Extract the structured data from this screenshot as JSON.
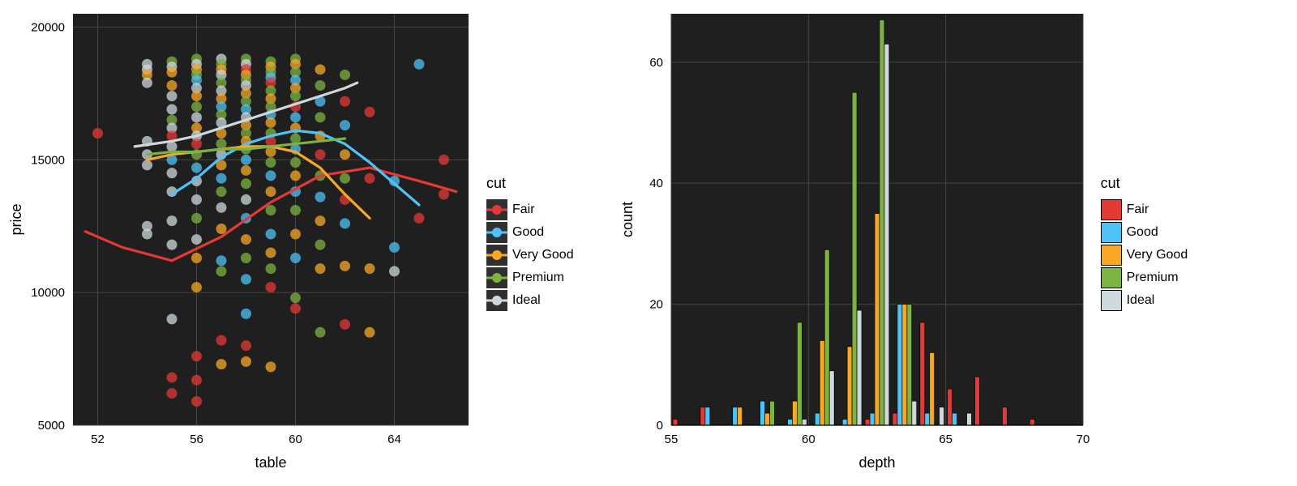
{
  "palette": {
    "Fair": "#e53935",
    "Good": "#4fc3f7",
    "Very Good": "#f9a825",
    "Premium": "#7cb342",
    "Ideal": "#cfd8dc"
  },
  "cut_order": [
    "Fair",
    "Good",
    "Very Good",
    "Premium",
    "Ideal"
  ],
  "panel_bg": "#1f1f1f",
  "grid_color": "#454545",
  "grid_width": 1,
  "scatter": {
    "type": "scatter+smooth",
    "xlabel": "table",
    "ylabel": "price",
    "xlim": [
      51,
      67
    ],
    "ylim": [
      5000,
      20500
    ],
    "xticks": [
      52,
      56,
      60,
      64
    ],
    "yticks": [
      5000,
      10000,
      15000,
      20000
    ],
    "point_radius": 6.5,
    "point_opacity": 0.75,
    "line_width": 3.2,
    "axis_label_fontsize": 18,
    "tick_fontsize": 15,
    "points": [
      {
        "x": 52,
        "y": 16000,
        "cut": "Fair"
      },
      {
        "x": 54,
        "y": 18600,
        "cut": "Ideal"
      },
      {
        "x": 54,
        "y": 18400,
        "cut": "Ideal"
      },
      {
        "x": 54,
        "y": 18200,
        "cut": "Very Good"
      },
      {
        "x": 54,
        "y": 17900,
        "cut": "Ideal"
      },
      {
        "x": 54,
        "y": 15700,
        "cut": "Ideal"
      },
      {
        "x": 54,
        "y": 15200,
        "cut": "Ideal"
      },
      {
        "x": 54,
        "y": 14800,
        "cut": "Ideal"
      },
      {
        "x": 54,
        "y": 12500,
        "cut": "Ideal"
      },
      {
        "x": 54,
        "y": 12200,
        "cut": "Ideal"
      },
      {
        "x": 55,
        "y": 18700,
        "cut": "Premium"
      },
      {
        "x": 55,
        "y": 18500,
        "cut": "Ideal"
      },
      {
        "x": 55,
        "y": 18300,
        "cut": "Very Good"
      },
      {
        "x": 55,
        "y": 17800,
        "cut": "Very Good"
      },
      {
        "x": 55,
        "y": 17400,
        "cut": "Ideal"
      },
      {
        "x": 55,
        "y": 16900,
        "cut": "Ideal"
      },
      {
        "x": 55,
        "y": 16500,
        "cut": "Premium"
      },
      {
        "x": 55,
        "y": 16200,
        "cut": "Ideal"
      },
      {
        "x": 55,
        "y": 15900,
        "cut": "Fair"
      },
      {
        "x": 55,
        "y": 15500,
        "cut": "Ideal"
      },
      {
        "x": 55,
        "y": 15000,
        "cut": "Good"
      },
      {
        "x": 55,
        "y": 14500,
        "cut": "Ideal"
      },
      {
        "x": 55,
        "y": 13800,
        "cut": "Ideal"
      },
      {
        "x": 55,
        "y": 12700,
        "cut": "Ideal"
      },
      {
        "x": 55,
        "y": 11800,
        "cut": "Ideal"
      },
      {
        "x": 55,
        "y": 9000,
        "cut": "Ideal"
      },
      {
        "x": 55,
        "y": 6800,
        "cut": "Fair"
      },
      {
        "x": 55,
        "y": 6200,
        "cut": "Fair"
      },
      {
        "x": 56,
        "y": 18800,
        "cut": "Premium"
      },
      {
        "x": 56,
        "y": 18600,
        "cut": "Ideal"
      },
      {
        "x": 56,
        "y": 18400,
        "cut": "Very Good"
      },
      {
        "x": 56,
        "y": 18200,
        "cut": "Premium"
      },
      {
        "x": 56,
        "y": 18000,
        "cut": "Good"
      },
      {
        "x": 56,
        "y": 17700,
        "cut": "Ideal"
      },
      {
        "x": 56,
        "y": 17400,
        "cut": "Very Good"
      },
      {
        "x": 56,
        "y": 17000,
        "cut": "Premium"
      },
      {
        "x": 56,
        "y": 16600,
        "cut": "Ideal"
      },
      {
        "x": 56,
        "y": 16200,
        "cut": "Very Good"
      },
      {
        "x": 56,
        "y": 15900,
        "cut": "Ideal"
      },
      {
        "x": 56,
        "y": 15600,
        "cut": "Fair"
      },
      {
        "x": 56,
        "y": 15200,
        "cut": "Premium"
      },
      {
        "x": 56,
        "y": 14700,
        "cut": "Good"
      },
      {
        "x": 56,
        "y": 14200,
        "cut": "Ideal"
      },
      {
        "x": 56,
        "y": 13500,
        "cut": "Ideal"
      },
      {
        "x": 56,
        "y": 12800,
        "cut": "Premium"
      },
      {
        "x": 56,
        "y": 12000,
        "cut": "Ideal"
      },
      {
        "x": 56,
        "y": 11300,
        "cut": "Very Good"
      },
      {
        "x": 56,
        "y": 10200,
        "cut": "Very Good"
      },
      {
        "x": 56,
        "y": 7600,
        "cut": "Fair"
      },
      {
        "x": 56,
        "y": 6700,
        "cut": "Fair"
      },
      {
        "x": 56,
        "y": 5900,
        "cut": "Fair"
      },
      {
        "x": 57,
        "y": 18800,
        "cut": "Ideal"
      },
      {
        "x": 57,
        "y": 18600,
        "cut": "Premium"
      },
      {
        "x": 57,
        "y": 18400,
        "cut": "Very Good"
      },
      {
        "x": 57,
        "y": 18200,
        "cut": "Ideal"
      },
      {
        "x": 57,
        "y": 17900,
        "cut": "Premium"
      },
      {
        "x": 57,
        "y": 17600,
        "cut": "Ideal"
      },
      {
        "x": 57,
        "y": 17300,
        "cut": "Very Good"
      },
      {
        "x": 57,
        "y": 17000,
        "cut": "Good"
      },
      {
        "x": 57,
        "y": 16700,
        "cut": "Premium"
      },
      {
        "x": 57,
        "y": 16400,
        "cut": "Ideal"
      },
      {
        "x": 57,
        "y": 16000,
        "cut": "Very Good"
      },
      {
        "x": 57,
        "y": 15600,
        "cut": "Premium"
      },
      {
        "x": 57,
        "y": 15200,
        "cut": "Ideal"
      },
      {
        "x": 57,
        "y": 14800,
        "cut": "Very Good"
      },
      {
        "x": 57,
        "y": 14300,
        "cut": "Good"
      },
      {
        "x": 57,
        "y": 13800,
        "cut": "Premium"
      },
      {
        "x": 57,
        "y": 13200,
        "cut": "Ideal"
      },
      {
        "x": 57,
        "y": 12400,
        "cut": "Very Good"
      },
      {
        "x": 57,
        "y": 11200,
        "cut": "Good"
      },
      {
        "x": 57,
        "y": 10800,
        "cut": "Premium"
      },
      {
        "x": 57,
        "y": 8200,
        "cut": "Fair"
      },
      {
        "x": 57,
        "y": 7300,
        "cut": "Very Good"
      },
      {
        "x": 58,
        "y": 18800,
        "cut": "Premium"
      },
      {
        "x": 58,
        "y": 18600,
        "cut": "Ideal"
      },
      {
        "x": 58,
        "y": 18400,
        "cut": "Fair"
      },
      {
        "x": 58,
        "y": 18200,
        "cut": "Very Good"
      },
      {
        "x": 58,
        "y": 18000,
        "cut": "Premium"
      },
      {
        "x": 58,
        "y": 17800,
        "cut": "Ideal"
      },
      {
        "x": 58,
        "y": 17500,
        "cut": "Very Good"
      },
      {
        "x": 58,
        "y": 17200,
        "cut": "Premium"
      },
      {
        "x": 58,
        "y": 16900,
        "cut": "Good"
      },
      {
        "x": 58,
        "y": 16600,
        "cut": "Ideal"
      },
      {
        "x": 58,
        "y": 16300,
        "cut": "Very Good"
      },
      {
        "x": 58,
        "y": 16000,
        "cut": "Premium"
      },
      {
        "x": 58,
        "y": 15700,
        "cut": "Very Good"
      },
      {
        "x": 58,
        "y": 15400,
        "cut": "Premium"
      },
      {
        "x": 58,
        "y": 15000,
        "cut": "Good"
      },
      {
        "x": 58,
        "y": 14600,
        "cut": "Very Good"
      },
      {
        "x": 58,
        "y": 14100,
        "cut": "Premium"
      },
      {
        "x": 58,
        "y": 13500,
        "cut": "Ideal"
      },
      {
        "x": 58,
        "y": 12800,
        "cut": "Good"
      },
      {
        "x": 58,
        "y": 12000,
        "cut": "Very Good"
      },
      {
        "x": 58,
        "y": 11300,
        "cut": "Premium"
      },
      {
        "x": 58,
        "y": 10500,
        "cut": "Good"
      },
      {
        "x": 58,
        "y": 9200,
        "cut": "Good"
      },
      {
        "x": 58,
        "y": 8000,
        "cut": "Fair"
      },
      {
        "x": 58,
        "y": 7400,
        "cut": "Very Good"
      },
      {
        "x": 59,
        "y": 18700,
        "cut": "Premium"
      },
      {
        "x": 59,
        "y": 18500,
        "cut": "Very Good"
      },
      {
        "x": 59,
        "y": 18300,
        "cut": "Premium"
      },
      {
        "x": 59,
        "y": 18100,
        "cut": "Good"
      },
      {
        "x": 59,
        "y": 17900,
        "cut": "Fair"
      },
      {
        "x": 59,
        "y": 17600,
        "cut": "Premium"
      },
      {
        "x": 59,
        "y": 17300,
        "cut": "Very Good"
      },
      {
        "x": 59,
        "y": 17000,
        "cut": "Premium"
      },
      {
        "x": 59,
        "y": 16700,
        "cut": "Good"
      },
      {
        "x": 59,
        "y": 16400,
        "cut": "Very Good"
      },
      {
        "x": 59,
        "y": 16000,
        "cut": "Premium"
      },
      {
        "x": 59,
        "y": 15700,
        "cut": "Fair"
      },
      {
        "x": 59,
        "y": 15300,
        "cut": "Very Good"
      },
      {
        "x": 59,
        "y": 14900,
        "cut": "Premium"
      },
      {
        "x": 59,
        "y": 14400,
        "cut": "Good"
      },
      {
        "x": 59,
        "y": 13800,
        "cut": "Very Good"
      },
      {
        "x": 59,
        "y": 13100,
        "cut": "Premium"
      },
      {
        "x": 59,
        "y": 12200,
        "cut": "Good"
      },
      {
        "x": 59,
        "y": 11500,
        "cut": "Very Good"
      },
      {
        "x": 59,
        "y": 10900,
        "cut": "Premium"
      },
      {
        "x": 59,
        "y": 10200,
        "cut": "Fair"
      },
      {
        "x": 59,
        "y": 7200,
        "cut": "Very Good"
      },
      {
        "x": 60,
        "y": 18800,
        "cut": "Premium"
      },
      {
        "x": 60,
        "y": 18600,
        "cut": "Very Good"
      },
      {
        "x": 60,
        "y": 18300,
        "cut": "Premium"
      },
      {
        "x": 60,
        "y": 18000,
        "cut": "Good"
      },
      {
        "x": 60,
        "y": 17700,
        "cut": "Very Good"
      },
      {
        "x": 60,
        "y": 17400,
        "cut": "Premium"
      },
      {
        "x": 60,
        "y": 17000,
        "cut": "Fair"
      },
      {
        "x": 60,
        "y": 16600,
        "cut": "Good"
      },
      {
        "x": 60,
        "y": 16200,
        "cut": "Very Good"
      },
      {
        "x": 60,
        "y": 15800,
        "cut": "Premium"
      },
      {
        "x": 60,
        "y": 15400,
        "cut": "Good"
      },
      {
        "x": 60,
        "y": 14900,
        "cut": "Premium"
      },
      {
        "x": 60,
        "y": 14400,
        "cut": "Very Good"
      },
      {
        "x": 60,
        "y": 13800,
        "cut": "Good"
      },
      {
        "x": 60,
        "y": 13100,
        "cut": "Premium"
      },
      {
        "x": 60,
        "y": 12200,
        "cut": "Very Good"
      },
      {
        "x": 60,
        "y": 11300,
        "cut": "Good"
      },
      {
        "x": 60,
        "y": 9800,
        "cut": "Premium"
      },
      {
        "x": 60,
        "y": 9400,
        "cut": "Fair"
      },
      {
        "x": 61,
        "y": 18400,
        "cut": "Very Good"
      },
      {
        "x": 61,
        "y": 17800,
        "cut": "Premium"
      },
      {
        "x": 61,
        "y": 17200,
        "cut": "Good"
      },
      {
        "x": 61,
        "y": 16600,
        "cut": "Premium"
      },
      {
        "x": 61,
        "y": 15900,
        "cut": "Very Good"
      },
      {
        "x": 61,
        "y": 15200,
        "cut": "Fair"
      },
      {
        "x": 61,
        "y": 14400,
        "cut": "Premium"
      },
      {
        "x": 61,
        "y": 13600,
        "cut": "Good"
      },
      {
        "x": 61,
        "y": 12700,
        "cut": "Very Good"
      },
      {
        "x": 61,
        "y": 11800,
        "cut": "Premium"
      },
      {
        "x": 61,
        "y": 10900,
        "cut": "Very Good"
      },
      {
        "x": 61,
        "y": 8500,
        "cut": "Premium"
      },
      {
        "x": 62,
        "y": 18200,
        "cut": "Premium"
      },
      {
        "x": 62,
        "y": 17200,
        "cut": "Fair"
      },
      {
        "x": 62,
        "y": 16300,
        "cut": "Good"
      },
      {
        "x": 62,
        "y": 15200,
        "cut": "Very Good"
      },
      {
        "x": 62,
        "y": 14300,
        "cut": "Premium"
      },
      {
        "x": 62,
        "y": 13500,
        "cut": "Fair"
      },
      {
        "x": 62,
        "y": 12600,
        "cut": "Good"
      },
      {
        "x": 62,
        "y": 11000,
        "cut": "Very Good"
      },
      {
        "x": 62,
        "y": 8800,
        "cut": "Fair"
      },
      {
        "x": 63,
        "y": 16800,
        "cut": "Fair"
      },
      {
        "x": 63,
        "y": 14300,
        "cut": "Fair"
      },
      {
        "x": 63,
        "y": 10900,
        "cut": "Very Good"
      },
      {
        "x": 63,
        "y": 8500,
        "cut": "Very Good"
      },
      {
        "x": 64,
        "y": 14200,
        "cut": "Good"
      },
      {
        "x": 64,
        "y": 11700,
        "cut": "Good"
      },
      {
        "x": 64,
        "y": 10800,
        "cut": "Ideal"
      },
      {
        "x": 65,
        "y": 18600,
        "cut": "Good"
      },
      {
        "x": 65,
        "y": 12800,
        "cut": "Fair"
      },
      {
        "x": 66,
        "y": 15000,
        "cut": "Fair"
      },
      {
        "x": 66,
        "y": 13700,
        "cut": "Fair"
      }
    ],
    "smooth_lines": {
      "Fair": [
        {
          "x": 51.5,
          "y": 12300
        },
        {
          "x": 53,
          "y": 11700
        },
        {
          "x": 55,
          "y": 11200
        },
        {
          "x": 57,
          "y": 12100
        },
        {
          "x": 59,
          "y": 13400
        },
        {
          "x": 61,
          "y": 14400
        },
        {
          "x": 63,
          "y": 14700
        },
        {
          "x": 65,
          "y": 14200
        },
        {
          "x": 66.5,
          "y": 13800
        }
      ],
      "Good": [
        {
          "x": 55,
          "y": 13700
        },
        {
          "x": 56,
          "y": 14300
        },
        {
          "x": 57,
          "y": 15100
        },
        {
          "x": 58,
          "y": 15600
        },
        {
          "x": 59,
          "y": 15900
        },
        {
          "x": 60,
          "y": 16100
        },
        {
          "x": 61,
          "y": 16000
        },
        {
          "x": 62,
          "y": 15600
        },
        {
          "x": 63,
          "y": 14900
        },
        {
          "x": 64,
          "y": 14100
        },
        {
          "x": 65,
          "y": 13300
        }
      ],
      "Very Good": [
        {
          "x": 54,
          "y": 15000
        },
        {
          "x": 55,
          "y": 15200
        },
        {
          "x": 56,
          "y": 15300
        },
        {
          "x": 57,
          "y": 15400
        },
        {
          "x": 58,
          "y": 15500
        },
        {
          "x": 59,
          "y": 15500
        },
        {
          "x": 60,
          "y": 15300
        },
        {
          "x": 61,
          "y": 14700
        },
        {
          "x": 62,
          "y": 13700
        },
        {
          "x": 63,
          "y": 12800
        }
      ],
      "Premium": [
        {
          "x": 54,
          "y": 15200
        },
        {
          "x": 55,
          "y": 15300
        },
        {
          "x": 56,
          "y": 15300
        },
        {
          "x": 57,
          "y": 15400
        },
        {
          "x": 58,
          "y": 15400
        },
        {
          "x": 59,
          "y": 15500
        },
        {
          "x": 60,
          "y": 15600
        },
        {
          "x": 61,
          "y": 15700
        },
        {
          "x": 62,
          "y": 15800
        }
      ],
      "Ideal": [
        {
          "x": 53.5,
          "y": 15500
        },
        {
          "x": 55,
          "y": 15700
        },
        {
          "x": 56,
          "y": 15900
        },
        {
          "x": 57,
          "y": 16200
        },
        {
          "x": 58,
          "y": 16500
        },
        {
          "x": 59,
          "y": 16800
        },
        {
          "x": 60,
          "y": 17100
        },
        {
          "x": 61,
          "y": 17400
        },
        {
          "x": 62,
          "y": 17700
        },
        {
          "x": 62.5,
          "y": 17900
        }
      ]
    }
  },
  "histogram": {
    "type": "bar",
    "xlabel": "depth",
    "ylabel": "count",
    "xlim": [
      55,
      70
    ],
    "ylim": [
      0,
      68
    ],
    "xticks": [
      55,
      60,
      65,
      70
    ],
    "yticks": [
      0,
      20,
      40,
      60
    ],
    "bar_group_width": 0.88,
    "bar_border_color": "#000000",
    "bar_border_width": 0.7,
    "axis_label_fontsize": 18,
    "tick_fontsize": 15,
    "bins": [
      {
        "x": 55.5,
        "counts": {
          "Fair": 1
        }
      },
      {
        "x": 56.5,
        "counts": {
          "Fair": 3,
          "Good": 3
        }
      },
      {
        "x": 57.5,
        "counts": {
          "Good": 3,
          "Very Good": 3
        }
      },
      {
        "x": 58.5,
        "counts": {
          "Good": 4,
          "Very Good": 2,
          "Premium": 4
        }
      },
      {
        "x": 59.5,
        "counts": {
          "Good": 1,
          "Very Good": 4,
          "Premium": 17,
          "Ideal": 1
        }
      },
      {
        "x": 60.5,
        "counts": {
          "Good": 2,
          "Very Good": 14,
          "Premium": 29,
          "Ideal": 9
        }
      },
      {
        "x": 61.5,
        "counts": {
          "Good": 1,
          "Very Good": 13,
          "Premium": 55,
          "Ideal": 19
        }
      },
      {
        "x": 62.5,
        "counts": {
          "Fair": 1,
          "Good": 2,
          "Very Good": 35,
          "Premium": 67,
          "Ideal": 63
        }
      },
      {
        "x": 63.5,
        "counts": {
          "Fair": 2,
          "Good": 20,
          "Very Good": 20,
          "Premium": 20,
          "Ideal": 4
        }
      },
      {
        "x": 64.5,
        "counts": {
          "Fair": 17,
          "Good": 2,
          "Very Good": 12,
          "Ideal": 3
        }
      },
      {
        "x": 65.5,
        "counts": {
          "Fair": 6,
          "Good": 2,
          "Ideal": 2
        }
      },
      {
        "x": 66.5,
        "counts": {
          "Fair": 8
        }
      },
      {
        "x": 67.5,
        "counts": {
          "Fair": 3
        }
      },
      {
        "x": 68.5,
        "counts": {
          "Fair": 1
        }
      }
    ]
  },
  "legend1": {
    "title": "cut",
    "style": "scatter"
  },
  "legend2": {
    "title": "cut",
    "style": "bar"
  }
}
